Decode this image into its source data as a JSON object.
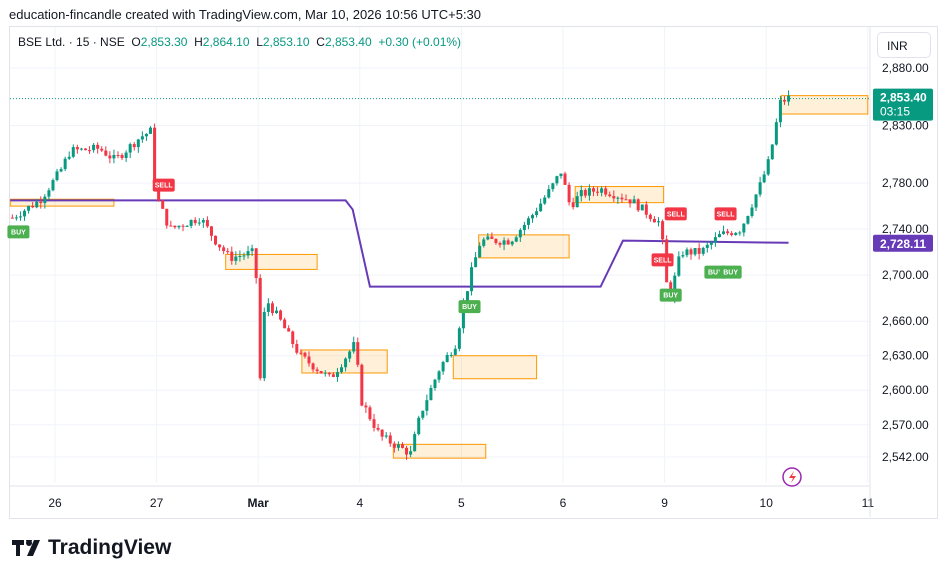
{
  "caption": "education-fincandle created with TradingView.com, Mar 10, 2026 10:56 UTC+5:30",
  "legend": {
    "symbol": "BSE Ltd. · 15 · NSE",
    "o_label": "O",
    "o": "2,853.30",
    "h_label": "H",
    "h": "2,864.10",
    "l_label": "L",
    "l": "2,853.10",
    "c_label": "C",
    "c": "2,853.40",
    "change": "+0.30 (+0.01%)"
  },
  "currency": "INR",
  "price_badge": {
    "price": "2,853.40",
    "countdown": "03:15",
    "color": "#089981"
  },
  "line_badge": {
    "price": "2,728.11",
    "color": "#673ab7"
  },
  "brand": "TradingView",
  "colors": {
    "up": "#089981",
    "down": "#f23645",
    "zone": "#ff9800",
    "line": "#673ab7"
  },
  "chart_data": {
    "type": "candlestick",
    "y_ticks": [
      "2,880.00",
      "2,830.00",
      "2,780.00",
      "2,740.00",
      "2,700.00",
      "2,660.00",
      "2,630.00",
      "2,600.00",
      "2,570.00",
      "2,542.00"
    ],
    "y_tick_values": [
      2880,
      2830,
      2780,
      2740,
      2700,
      2660,
      2630,
      2600,
      2570,
      2542
    ],
    "x_ticks": [
      "26",
      "27",
      "Mar",
      "4",
      "5",
      "6",
      "9",
      "10",
      "11"
    ],
    "ylim": [
      2542,
      2880
    ],
    "price_path_days": [
      [
        -0.42,
        2750
      ],
      [
        -0.15,
        2765
      ],
      [
        0.05,
        2790
      ],
      [
        0.15,
        2808
      ],
      [
        0.44,
        2810
      ],
      [
        0.59,
        2800
      ],
      [
        0.84,
        2820
      ],
      [
        0.94,
        2825
      ],
      [
        0.99,
        2770
      ],
      [
        1.13,
        2740
      ],
      [
        1.43,
        2750
      ],
      [
        1.58,
        2730
      ],
      [
        1.72,
        2715
      ],
      [
        1.97,
        2720
      ],
      [
        2.02,
        2610
      ],
      [
        2.07,
        2680
      ],
      [
        2.22,
        2660
      ],
      [
        2.41,
        2630
      ],
      [
        2.71,
        2610
      ],
      [
        2.95,
        2640
      ],
      [
        3.02,
        2590
      ],
      [
        3.2,
        2560
      ],
      [
        3.5,
        2545
      ],
      [
        3.6,
        2580
      ],
      [
        3.79,
        2620
      ],
      [
        3.94,
        2640
      ],
      [
        4.01,
        2670
      ],
      [
        4.09,
        2700
      ],
      [
        4.19,
        2730
      ],
      [
        4.48,
        2730
      ],
      [
        4.68,
        2750
      ],
      [
        4.88,
        2775
      ],
      [
        4.98,
        2790
      ],
      [
        5.07,
        2760
      ],
      [
        5.17,
        2770
      ],
      [
        5.37,
        2775
      ],
      [
        5.67,
        2765
      ],
      [
        5.96,
        2745
      ],
      [
        6.04,
        2675
      ],
      [
        6.16,
        2720
      ],
      [
        6.36,
        2720
      ],
      [
        6.55,
        2735
      ],
      [
        6.75,
        2740
      ],
      [
        6.95,
        2780
      ],
      [
        7.03,
        2800
      ],
      [
        7.14,
        2850
      ],
      [
        7.24,
        2855
      ]
    ],
    "supertrend_days": [
      [
        -0.44,
        2765
      ],
      [
        2.86,
        2765
      ],
      [
        2.93,
        2757
      ],
      [
        3.1,
        2690
      ],
      [
        5.37,
        2690
      ],
      [
        5.59,
        2730
      ],
      [
        7.22,
        2728.11
      ]
    ],
    "zones": [
      {
        "from": -0.44,
        "to": 0.58,
        "top": 2766,
        "bottom": 2760
      },
      {
        "from": 1.68,
        "to": 2.58,
        "top": 2718,
        "bottom": 2705
      },
      {
        "from": 2.43,
        "to": 3.27,
        "top": 2635,
        "bottom": 2615
      },
      {
        "from": 3.33,
        "to": 4.24,
        "top": 2553,
        "bottom": 2541
      },
      {
        "from": 3.92,
        "to": 4.74,
        "top": 2630,
        "bottom": 2610
      },
      {
        "from": 4.17,
        "to": 5.06,
        "top": 2735,
        "bottom": 2715
      },
      {
        "from": 5.12,
        "to": 5.99,
        "top": 2777,
        "bottom": 2763
      },
      {
        "from": 7.15,
        "to": 8.0,
        "top": 2856,
        "bottom": 2840
      }
    ],
    "signals": [
      {
        "type": "BUY",
        "t": -0.36,
        "price": 2745
      },
      {
        "type": "SELL",
        "t": 1.07,
        "price": 2770
      },
      {
        "type": "BUY",
        "t": 4.08,
        "price": 2680
      },
      {
        "type": "SELL",
        "t": 5.98,
        "price": 2705
      },
      {
        "type": "BUY",
        "t": 6.06,
        "price": 2690
      },
      {
        "type": "SELL",
        "t": 6.11,
        "price": 2745
      },
      {
        "type": "BUY",
        "t": 6.5,
        "price": 2710
      },
      {
        "type": "SELL",
        "t": 6.6,
        "price": 2745
      },
      {
        "type": "BUY",
        "t": 6.65,
        "price": 2710
      }
    ]
  }
}
